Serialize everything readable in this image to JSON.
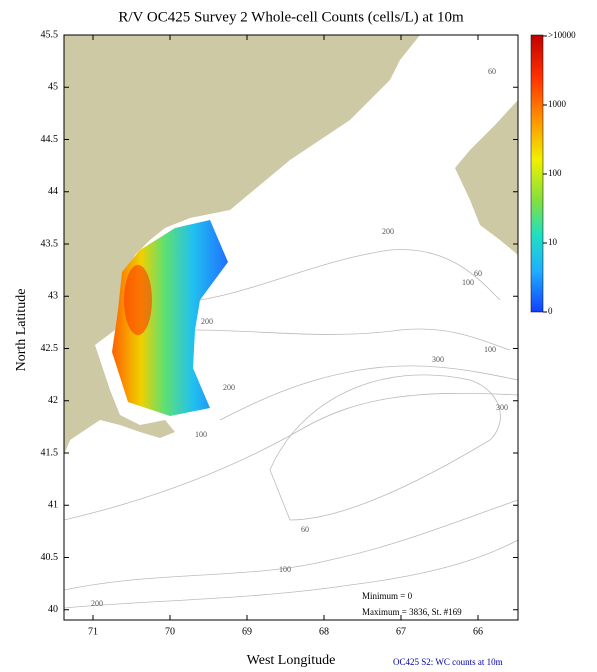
{
  "title": "R/V OC425 Survey 2 Whole-cell Counts (cells/L) at 10m",
  "x_axis": {
    "label": "West Longitude",
    "ticks": [
      71,
      70,
      69,
      68,
      67,
      66
    ]
  },
  "y_axis": {
    "label": "North Latitude",
    "ticks": [
      45.5,
      45,
      44.5,
      44,
      43.5,
      43,
      42.5,
      42,
      41.5,
      41,
      40.5,
      40
    ]
  },
  "colorbar": {
    "labels": [
      ">10000",
      "1000",
      "100",
      "10",
      "0"
    ]
  },
  "contour_labels": [
    "60",
    "200",
    "60",
    "100",
    "200",
    "100",
    "300",
    "200",
    "300",
    "100",
    "60",
    "100",
    "200"
  ],
  "stats": {
    "minimum": "Minimum = 0",
    "maximum": "Maximum = 3836, St. #169"
  },
  "footer": "OC425  S2: WC counts at 10m"
}
